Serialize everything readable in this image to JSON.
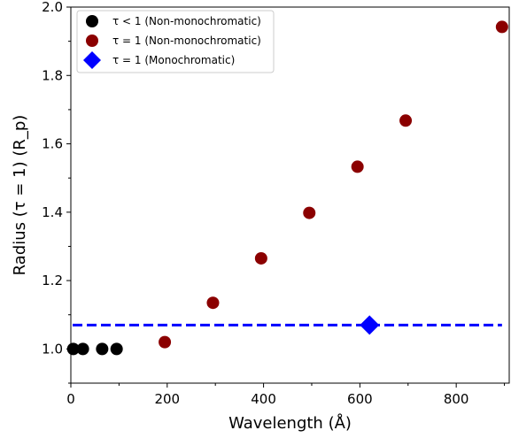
{
  "chart_data": {
    "type": "scatter",
    "xlabel": "Wavelength (Å)",
    "ylabel": "Radius (τ = 1) (R_p)",
    "xlim": [
      0,
      910
    ],
    "ylim": [
      0.9,
      2.0
    ],
    "grid": false,
    "legend_position": "top-left",
    "x_ticks": [
      0,
      200,
      400,
      600,
      800
    ],
    "y_ticks": [
      1.0,
      1.2,
      1.4,
      1.6,
      1.8,
      2.0
    ],
    "x_tick_labels": [
      "0",
      "200",
      "400",
      "600",
      "800"
    ],
    "y_tick_labels": [
      "1.0",
      "1.2",
      "1.4",
      "1.6",
      "1.8",
      "2.0"
    ],
    "series": [
      {
        "name": "τ < 1 (Non-monochromatic)",
        "marker": "circle",
        "color": "#000000",
        "points": [
          {
            "x": 5,
            "y": 1.0
          },
          {
            "x": 25,
            "y": 1.0
          },
          {
            "x": 65,
            "y": 1.0
          },
          {
            "x": 95,
            "y": 1.0
          }
        ]
      },
      {
        "name": "τ = 1 (Non-monochromatic)",
        "marker": "circle",
        "color": "#8b0000",
        "points": [
          {
            "x": 195,
            "y": 1.02
          },
          {
            "x": 295,
            "y": 1.135
          },
          {
            "x": 395,
            "y": 1.265
          },
          {
            "x": 495,
            "y": 1.398
          },
          {
            "x": 595,
            "y": 1.533
          },
          {
            "x": 695,
            "y": 1.668
          },
          {
            "x": 895,
            "y": 1.942
          }
        ]
      },
      {
        "name": "τ = 1 (Monochromatic)",
        "marker": "diamond",
        "color": "#0000ff",
        "points": [
          {
            "x": 620,
            "y": 1.07
          }
        ]
      }
    ],
    "reference_line": {
      "y": 1.07,
      "x_range": [
        0,
        895
      ],
      "style": "dashed",
      "color": "#0000ff"
    }
  }
}
